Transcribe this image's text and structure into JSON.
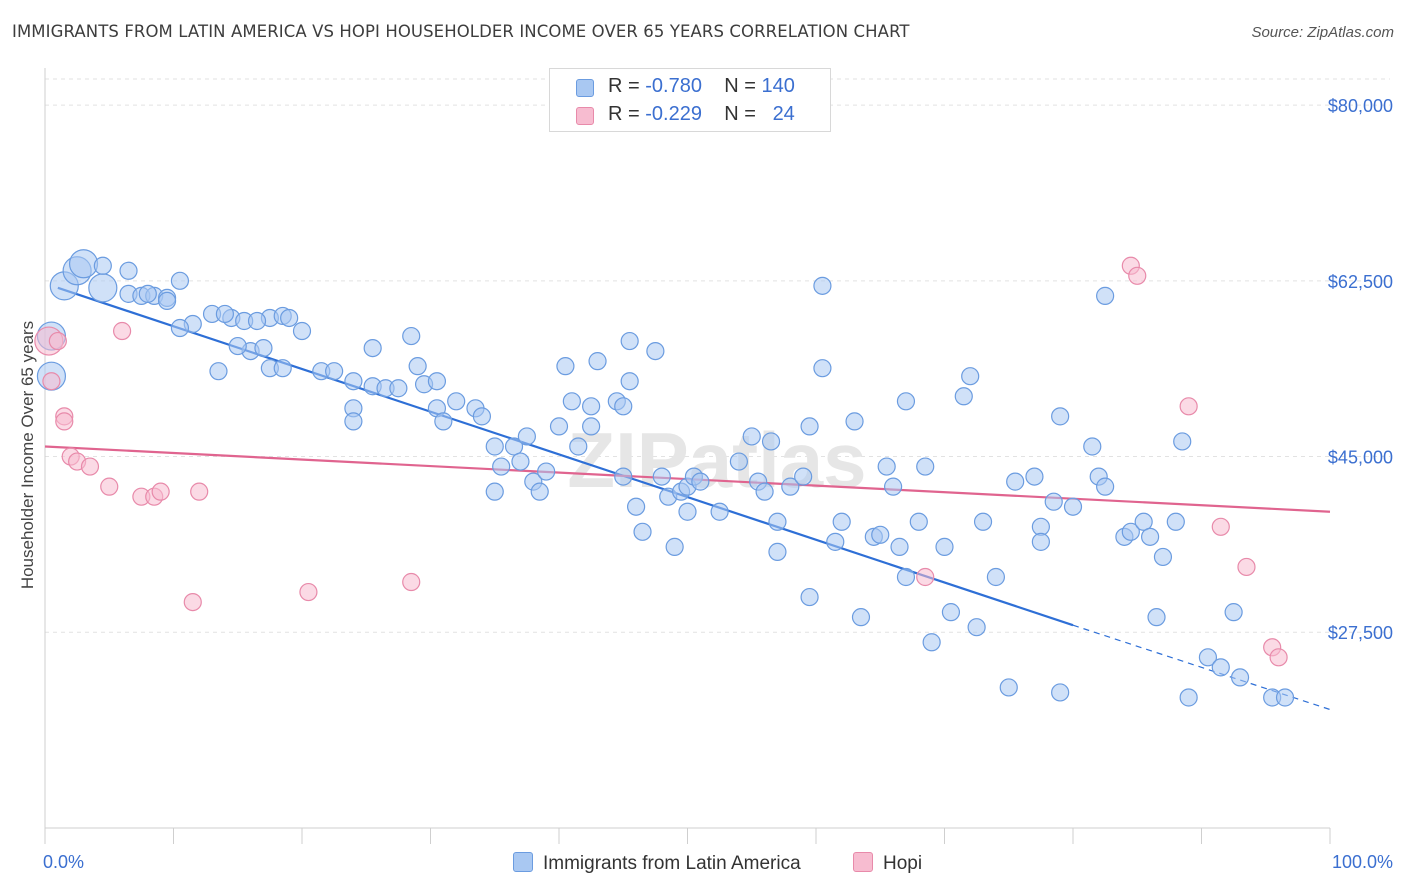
{
  "title": "IMMIGRANTS FROM LATIN AMERICA VS HOPI HOUSEHOLDER INCOME OVER 65 YEARS CORRELATION CHART",
  "source": "Source: ZipAtlas.com",
  "watermark": "ZIPatlas",
  "legend": {
    "rows": [
      {
        "r_label": "R =",
        "r_value": "-0.780",
        "n_label": "N =",
        "n_value": "140"
      },
      {
        "r_label": "R =",
        "r_value": "-0.229",
        "n_label": "N =",
        "n_value": "24"
      }
    ]
  },
  "bottom_legend": [
    "Immigrants from Latin America",
    "Hopi"
  ],
  "colors": {
    "blue_fill": "#a9c8f2",
    "blue_stroke": "#6b9ce0",
    "blue_line": "#2e6fd6",
    "pink_fill": "#f7bcd0",
    "pink_stroke": "#e88aaa",
    "pink_line": "#e0648f",
    "axis_text": "#3b6fd0"
  },
  "chart_data": {
    "type": "scatter",
    "title": "IMMIGRANTS FROM LATIN AMERICA VS HOPI HOUSEHOLDER INCOME OVER 65 YEARS CORRELATION CHART",
    "xlabel": "",
    "ylabel": "Householder Income Over 65 years",
    "xlim": [
      0,
      100
    ],
    "ylim": [
      8000,
      83000
    ],
    "x_tick_labels": [
      "0.0%",
      "100.0%"
    ],
    "y_ticks": [
      27500,
      45000,
      62500,
      80000
    ],
    "y_tick_labels": [
      "$27,500",
      "$45,000",
      "$62,500",
      "$80,000"
    ],
    "grid": true,
    "series": [
      {
        "name": "Immigrants from Latin America",
        "points": [
          [
            0.5,
            57000,
            2
          ],
          [
            0.5,
            53000,
            2
          ],
          [
            1.5,
            62000,
            2
          ],
          [
            2.5,
            63500,
            2
          ],
          [
            3.0,
            64200,
            2
          ],
          [
            4.5,
            61800,
            2
          ],
          [
            4.5,
            64000,
            1
          ],
          [
            6.5,
            63500,
            1
          ],
          [
            6.5,
            61200,
            1
          ],
          [
            7.5,
            61000,
            1
          ],
          [
            8.5,
            61000,
            1
          ],
          [
            9.5,
            60800,
            1
          ],
          [
            8.0,
            61200,
            1
          ],
          [
            10.5,
            62500,
            1
          ],
          [
            9.5,
            60500,
            1
          ],
          [
            11.5,
            58200,
            1
          ],
          [
            13.0,
            59200,
            1
          ],
          [
            14.5,
            58800,
            1
          ],
          [
            14.0,
            59200,
            1
          ],
          [
            15.5,
            58500,
            1
          ],
          [
            16.0,
            55500,
            1
          ],
          [
            17.0,
            55800,
            1
          ],
          [
            17.5,
            58800,
            1
          ],
          [
            15.0,
            56000,
            1
          ],
          [
            18.5,
            59000,
            1
          ],
          [
            19.0,
            58800,
            1
          ],
          [
            17.5,
            53800,
            1
          ],
          [
            18.5,
            53800,
            1
          ],
          [
            20.0,
            57500,
            1
          ],
          [
            10.5,
            57800,
            1
          ],
          [
            13.5,
            53500,
            1
          ],
          [
            16.5,
            58500,
            1
          ],
          [
            21.5,
            53500,
            1
          ],
          [
            22.5,
            53500,
            1
          ],
          [
            24.0,
            52500,
            1
          ],
          [
            25.5,
            52000,
            1
          ],
          [
            26.5,
            51800,
            1
          ],
          [
            27.5,
            51800,
            1
          ],
          [
            24.0,
            49800,
            1
          ],
          [
            24.0,
            48500,
            1
          ],
          [
            25.5,
            55800,
            1
          ],
          [
            28.5,
            57000,
            1
          ],
          [
            29.0,
            54000,
            1
          ],
          [
            29.5,
            52200,
            1
          ],
          [
            30.5,
            52500,
            1
          ],
          [
            30.5,
            49800,
            1
          ],
          [
            31.0,
            48500,
            1
          ],
          [
            32.0,
            50500,
            1
          ],
          [
            33.5,
            49800,
            1
          ],
          [
            34.0,
            49000,
            1
          ],
          [
            35.0,
            46000,
            1
          ],
          [
            35.5,
            44000,
            1
          ],
          [
            35.0,
            41500,
            1
          ],
          [
            36.5,
            46000,
            1
          ],
          [
            37.0,
            44500,
            1
          ],
          [
            37.5,
            47000,
            1
          ],
          [
            38.0,
            42500,
            1
          ],
          [
            38.5,
            41500,
            1
          ],
          [
            39.0,
            43500,
            1
          ],
          [
            40.0,
            48000,
            1
          ],
          [
            40.5,
            54000,
            1
          ],
          [
            41.0,
            50500,
            1
          ],
          [
            41.5,
            46000,
            1
          ],
          [
            42.5,
            50000,
            1
          ],
          [
            42.5,
            48000,
            1
          ],
          [
            43.0,
            54500,
            1
          ],
          [
            44.5,
            50500,
            1
          ],
          [
            45.0,
            50000,
            1
          ],
          [
            45.0,
            43000,
            1
          ],
          [
            45.5,
            52500,
            1
          ],
          [
            45.5,
            56500,
            1
          ],
          [
            46.0,
            40000,
            1
          ],
          [
            46.5,
            37500,
            1
          ],
          [
            47.5,
            55500,
            1
          ],
          [
            48.0,
            43000,
            1
          ],
          [
            48.5,
            41000,
            1
          ],
          [
            49.0,
            36000,
            1
          ],
          [
            49.5,
            41500,
            1
          ],
          [
            50.0,
            42000,
            1
          ],
          [
            50.0,
            39500,
            1
          ],
          [
            50.5,
            43000,
            1
          ],
          [
            51.0,
            42500,
            1
          ],
          [
            52.5,
            39500,
            1
          ],
          [
            54.0,
            44500,
            1
          ],
          [
            55.0,
            47000,
            1
          ],
          [
            55.5,
            42500,
            1
          ],
          [
            56.0,
            41500,
            1
          ],
          [
            56.5,
            46500,
            1
          ],
          [
            57.0,
            38500,
            1
          ],
          [
            57.0,
            35500,
            1
          ],
          [
            58.0,
            42000,
            1
          ],
          [
            59.0,
            43000,
            1
          ],
          [
            59.5,
            31000,
            1
          ],
          [
            59.5,
            48000,
            1
          ],
          [
            60.5,
            62000,
            1
          ],
          [
            60.5,
            53800,
            1
          ],
          [
            61.5,
            36500,
            1
          ],
          [
            62.0,
            38500,
            1
          ],
          [
            63.0,
            48500,
            1
          ],
          [
            63.5,
            29000,
            1
          ],
          [
            64.5,
            37000,
            1
          ],
          [
            65.0,
            37200,
            1
          ],
          [
            65.5,
            44000,
            1
          ],
          [
            66.0,
            42000,
            1
          ],
          [
            66.5,
            36000,
            1
          ],
          [
            67.0,
            33000,
            1
          ],
          [
            67.0,
            50500,
            1
          ],
          [
            68.0,
            38500,
            1
          ],
          [
            68.5,
            44000,
            1
          ],
          [
            69.0,
            26500,
            1
          ],
          [
            70.0,
            36000,
            1
          ],
          [
            70.5,
            29500,
            1
          ],
          [
            71.5,
            51000,
            1
          ],
          [
            72.0,
            53000,
            1
          ],
          [
            72.5,
            28000,
            1
          ],
          [
            73.0,
            38500,
            1
          ],
          [
            74.0,
            33000,
            1
          ],
          [
            75.0,
            22000,
            1
          ],
          [
            75.5,
            42500,
            1
          ],
          [
            77.0,
            43000,
            1
          ],
          [
            77.5,
            38000,
            1
          ],
          [
            77.5,
            36500,
            1
          ],
          [
            78.5,
            40500,
            1
          ],
          [
            79.0,
            49000,
            1
          ],
          [
            79.0,
            21500,
            1
          ],
          [
            80.0,
            40000,
            1
          ],
          [
            81.5,
            46000,
            1
          ],
          [
            82.0,
            43000,
            1
          ],
          [
            82.5,
            61000,
            1
          ],
          [
            82.5,
            42000,
            1
          ],
          [
            84.0,
            37000,
            1
          ],
          [
            84.5,
            37500,
            1
          ],
          [
            85.5,
            38500,
            1
          ],
          [
            86.0,
            37000,
            1
          ],
          [
            86.5,
            29000,
            1
          ],
          [
            87.0,
            35000,
            1
          ],
          [
            88.0,
            38500,
            1
          ],
          [
            88.5,
            46500,
            1
          ],
          [
            89.0,
            21000,
            1
          ],
          [
            90.5,
            25000,
            1
          ],
          [
            91.5,
            24000,
            1
          ],
          [
            92.5,
            29500,
            1
          ],
          [
            93.0,
            23000,
            1
          ],
          [
            95.5,
            21000,
            1
          ],
          [
            96.5,
            21000,
            1
          ]
        ]
      },
      {
        "name": "Hopi",
        "points": [
          [
            0.3,
            56500,
            2
          ],
          [
            0.5,
            52500,
            1
          ],
          [
            1.0,
            56500,
            1
          ],
          [
            1.5,
            49000,
            1
          ],
          [
            1.5,
            48500,
            1
          ],
          [
            2.0,
            45000,
            1
          ],
          [
            2.5,
            44500,
            1
          ],
          [
            3.5,
            44000,
            1
          ],
          [
            5.0,
            42000,
            1
          ],
          [
            6.0,
            57500,
            1
          ],
          [
            7.5,
            41000,
            1
          ],
          [
            8.5,
            41000,
            1
          ],
          [
            9.0,
            41500,
            1
          ],
          [
            12.0,
            41500,
            1
          ],
          [
            11.5,
            30500,
            1
          ],
          [
            20.5,
            31500,
            1
          ],
          [
            28.5,
            32500,
            1
          ],
          [
            68.5,
            33000,
            1
          ],
          [
            84.5,
            64000,
            1
          ],
          [
            85.0,
            63000,
            1
          ],
          [
            89.0,
            50000,
            1
          ],
          [
            91.5,
            38000,
            1
          ],
          [
            93.5,
            34000,
            1
          ],
          [
            95.5,
            26000,
            1
          ],
          [
            96.0,
            25000,
            1
          ]
        ]
      }
    ],
    "trendlines": [
      {
        "series": "Immigrants from Latin America",
        "x": [
          1,
          80
        ],
        "y": [
          61800,
          28200
        ],
        "dashed_extension_x": [
          80,
          100
        ],
        "dashed_extension_y": [
          28200,
          19800
        ]
      },
      {
        "series": "Hopi",
        "x": [
          0,
          100
        ],
        "y": [
          46000,
          39500
        ]
      }
    ]
  }
}
